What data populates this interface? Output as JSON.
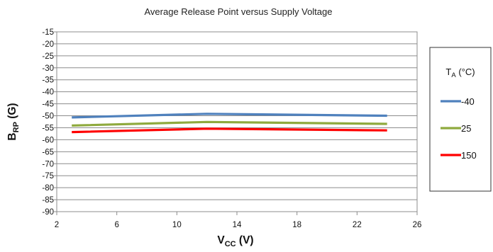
{
  "chart_data": {
    "type": "line",
    "title": "Average Release Point versus Supply Voltage",
    "xlabel": {
      "main": "V",
      "sub": "CC",
      "unit": " (V)"
    },
    "ylabel": {
      "main": "B",
      "sub": "RP",
      "unit": " (G)"
    },
    "xlim": [
      2,
      26
    ],
    "ylim": [
      -90,
      -15
    ],
    "xticks": [
      2,
      6,
      10,
      14,
      18,
      22,
      26
    ],
    "yticks": [
      -15,
      -20,
      -25,
      -30,
      -35,
      -40,
      -45,
      -50,
      -55,
      -60,
      -65,
      -70,
      -75,
      -80,
      -85,
      -90
    ],
    "grid": true,
    "legend": {
      "title": {
        "main": "T",
        "sub": "A",
        "unit": " (°C)"
      },
      "placement": "right"
    },
    "series": [
      {
        "name": "-40",
        "color": "#4f81bd",
        "x": [
          3,
          12,
          24
        ],
        "y": [
          -50.7,
          -49.2,
          -50.0
        ]
      },
      {
        "name": "25",
        "color": "#8faa3e",
        "x": [
          3,
          12,
          24
        ],
        "y": [
          -54.1,
          -52.6,
          -53.4
        ]
      },
      {
        "name": "150",
        "color": "#ff0000",
        "x": [
          3,
          12,
          24
        ],
        "y": [
          -56.8,
          -55.4,
          -56.1
        ]
      }
    ]
  }
}
